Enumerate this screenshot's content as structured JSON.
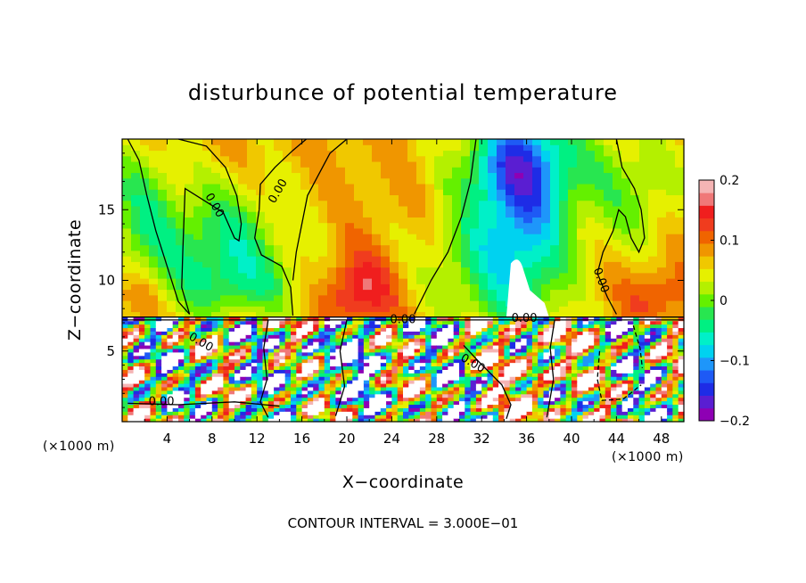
{
  "chart_data": {
    "type": "heatmap",
    "title": "disturbunce of potential temperature",
    "xlabel": "X−coordinate",
    "ylabel": "Z−coordinate",
    "x_unit_left": "(×1000 m)",
    "x_unit_right": "(×1000 m)",
    "xlim": [
      0,
      50
    ],
    "ylim": [
      0,
      20
    ],
    "xticks": [
      4,
      8,
      12,
      16,
      20,
      24,
      28,
      32,
      36,
      40,
      44,
      48
    ],
    "yticks": [
      5,
      10,
      15
    ],
    "contour_label": "0.00",
    "footnote": "CONTOUR INTERVAL = 3.000E−01",
    "colorbar": {
      "min": -0.2,
      "max": 0.2,
      "ticks": [
        {
          "value": 0.2,
          "label": "0.2"
        },
        {
          "value": 0.1,
          "label": "0.1"
        },
        {
          "value": 0,
          "label": "0"
        },
        {
          "value": -0.1,
          "label": "−0.1"
        },
        {
          "value": -0.2,
          "label": "−0.2"
        }
      ],
      "colors": [
        "#8e00b4",
        "#5a1ed2",
        "#1e2ce6",
        "#1e5af5",
        "#1e96fa",
        "#00d2f0",
        "#00f0c8",
        "#00f082",
        "#28e650",
        "#64f000",
        "#b4f000",
        "#e6f000",
        "#f0c800",
        "#f09600",
        "#f06400",
        "#f03c1e",
        "#f01e1e",
        "#f07878",
        "#f5b4b4"
      ]
    },
    "contour_labels": [
      {
        "text": "0.00",
        "x": 8.2,
        "z": 15.3,
        "angle": 60
      },
      {
        "text": "0.00",
        "x": 13.9,
        "z": 16.3,
        "angle": -60
      },
      {
        "text": "0.00",
        "x": 42.6,
        "z": 10.0,
        "angle": 70
      },
      {
        "text": "0.00",
        "x": 25.0,
        "z": 7.2,
        "angle": 0
      },
      {
        "text": "0.00",
        "x": 35.8,
        "z": 7.3,
        "angle": 0
      },
      {
        "text": "0.00",
        "x": 31.2,
        "z": 4.1,
        "angle": 30
      },
      {
        "text": "0.00",
        "x": 7.0,
        "z": 5.6,
        "angle": 30
      },
      {
        "text": "0.00",
        "x": 3.5,
        "z": 1.4,
        "angle": 0
      }
    ]
  }
}
